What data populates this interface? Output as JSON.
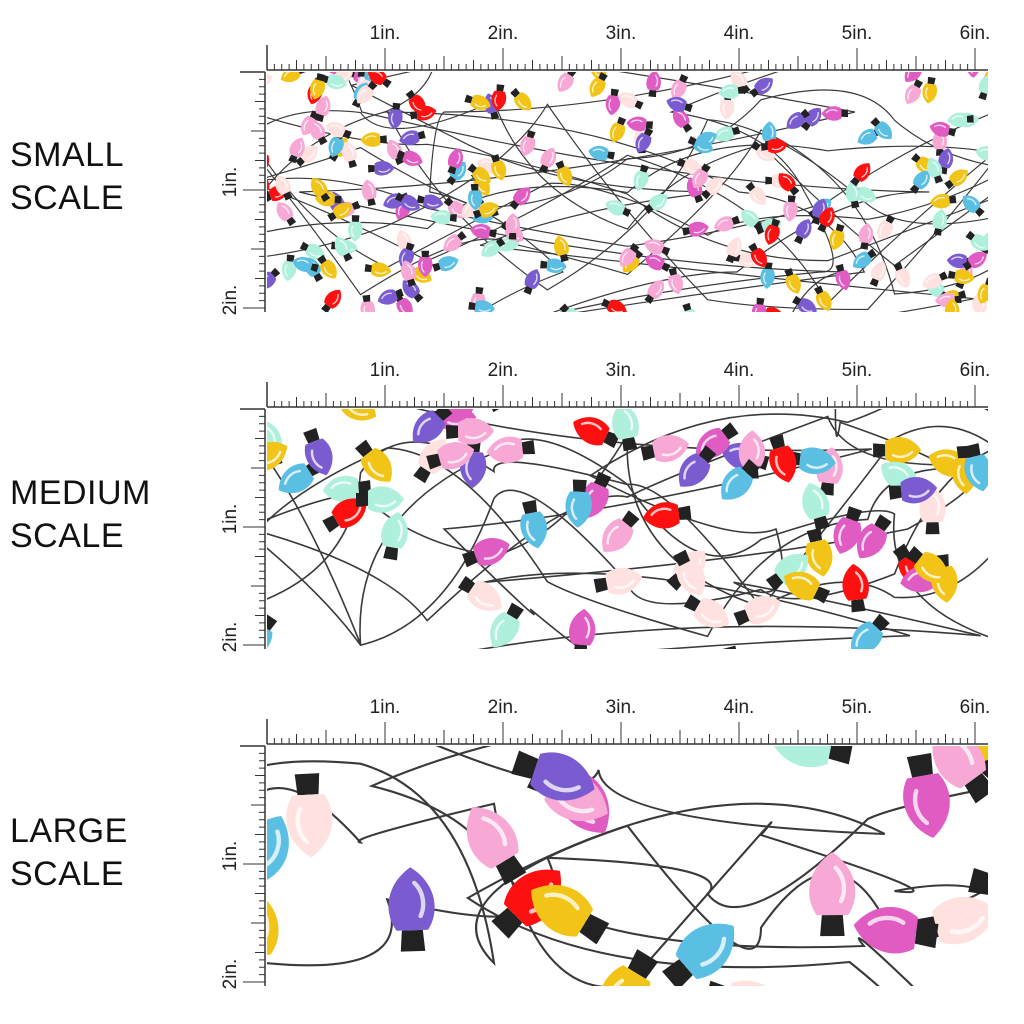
{
  "scales": [
    {
      "id": "small",
      "line1": "SMALL",
      "line2": "SCALE",
      "bulb_scale": 0.55
    },
    {
      "id": "medium",
      "line1": "MEDIUM",
      "line2": "SCALE",
      "bulb_scale": 1.0
    },
    {
      "id": "large",
      "line1": "LARGE",
      "line2": "SCALE",
      "bulb_scale": 1.75
    }
  ],
  "ruler": {
    "horizontal_labels": [
      "1in.",
      "2in.",
      "3in.",
      "4in.",
      "5in.",
      "6in."
    ],
    "vertical_labels": [
      "1in.",
      "2in."
    ]
  },
  "colors": {
    "background": "#ffffff",
    "wire": "#3a3a3a",
    "socket": "#222222",
    "bulbs": [
      "#5bbfe3",
      "#ff1010",
      "#f2c418",
      "#7a5bd0",
      "#e05bc2",
      "#f8a8d4",
      "#aef0dc",
      "#ffe2e0"
    ]
  },
  "pattern_name": "christmas-lights"
}
